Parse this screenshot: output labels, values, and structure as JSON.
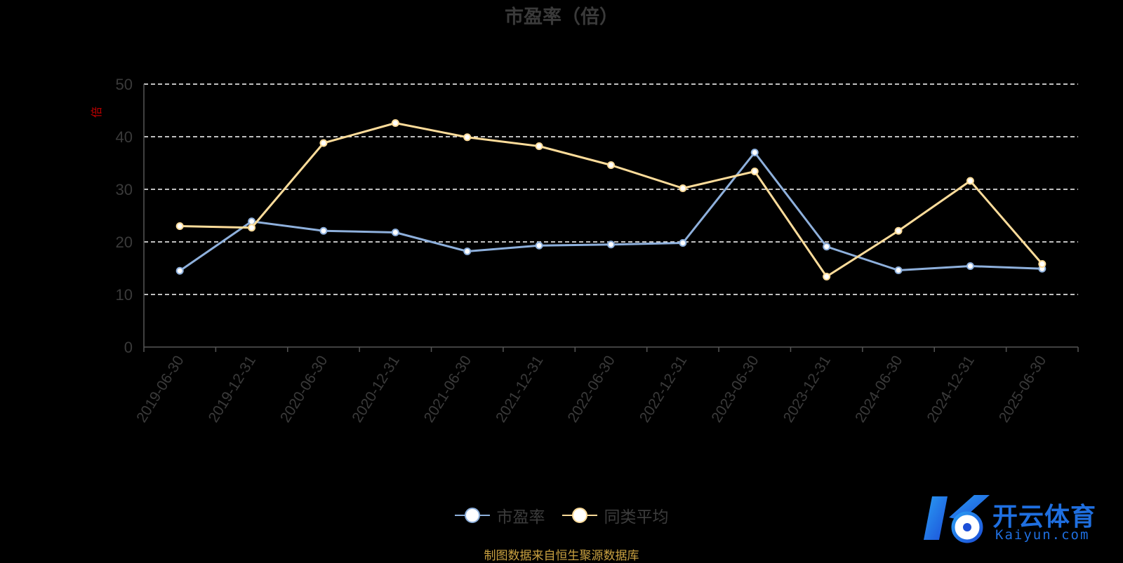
{
  "title": "市盈率（倍）",
  "source_note": "制图数据来自恒生聚源数据库",
  "watermark": {
    "brand": "开云体育",
    "domain": "Kaiyun.com"
  },
  "colors": {
    "pe_line": "#8eb0dc",
    "avg_line": "#fddc9a",
    "grid": "#ffffff",
    "axis": "#555555",
    "tick_label": "#3a3a3a"
  },
  "chart_data": {
    "type": "line",
    "title": "市盈率（倍）",
    "ylabel": "倍",
    "categories": [
      "2019-06-30",
      "2019-12-31",
      "2020-06-30",
      "2020-12-31",
      "2021-06-30",
      "2021-12-31",
      "2022-06-30",
      "2022-12-31",
      "2023-06-30",
      "2023-12-31",
      "2024-06-30",
      "2024-12-31",
      "2025-06-30"
    ],
    "yticks": [
      "0",
      "10",
      "20",
      "30",
      "40",
      "50"
    ],
    "ylim": [
      0,
      50
    ],
    "grid": true,
    "legend_position": "bottom-center",
    "series": [
      {
        "name": "市盈率",
        "values": [
          14.5,
          23.9,
          22.1,
          21.8,
          18.2,
          19.3,
          19.5,
          19.8,
          37.0,
          19.1,
          14.6,
          15.4,
          14.9
        ]
      },
      {
        "name": "同类平均",
        "values": [
          23.0,
          22.7,
          38.8,
          42.6,
          39.9,
          38.2,
          34.6,
          30.2,
          33.4,
          13.4,
          22.1,
          31.6,
          15.8
        ]
      }
    ]
  }
}
